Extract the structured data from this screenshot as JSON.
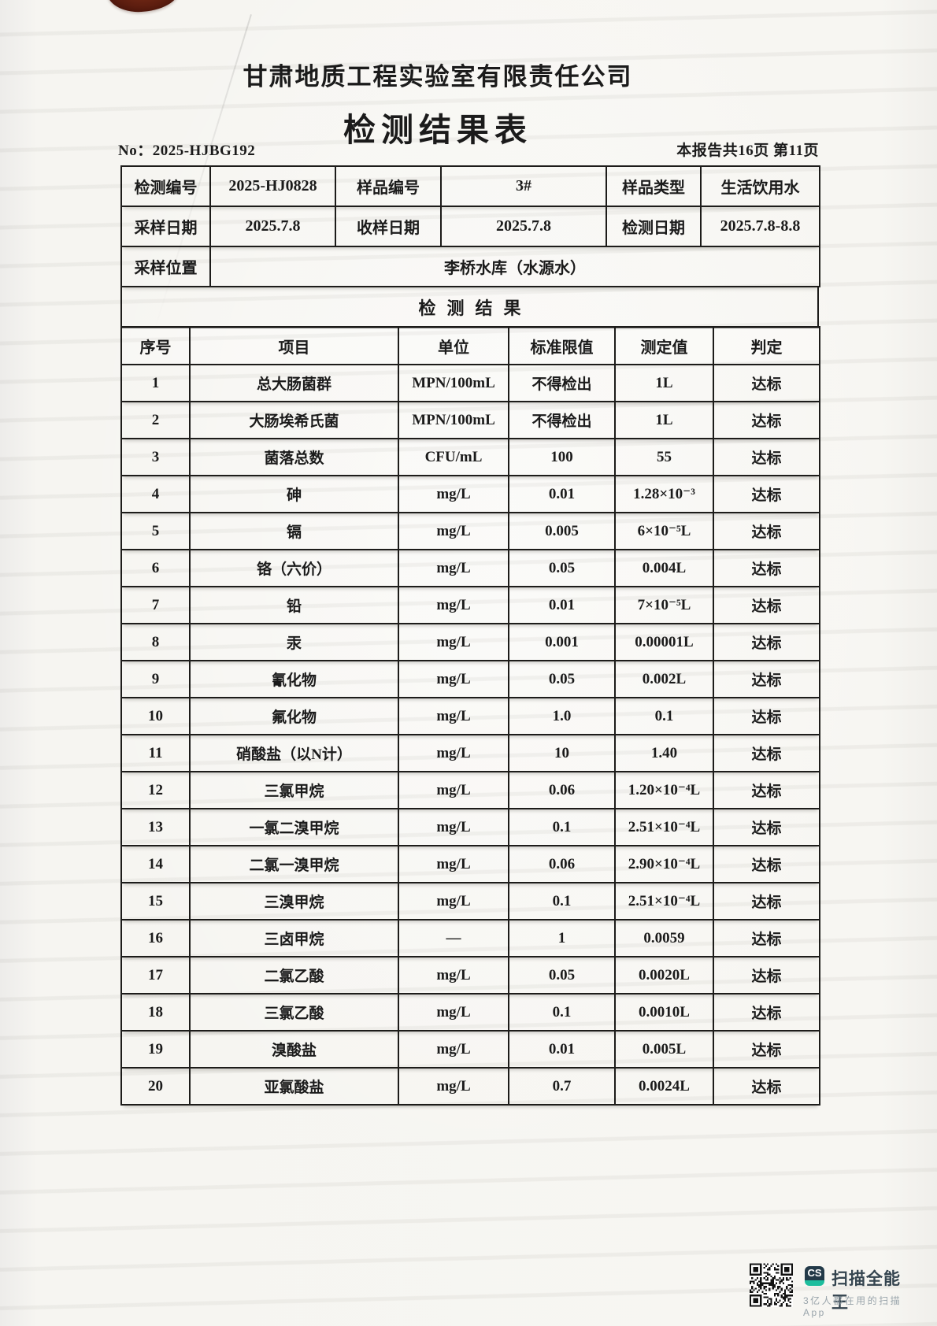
{
  "header": {
    "company": "甘肃地质工程实验室有限责任公司",
    "title": "检测结果表",
    "report_no": "No：2025-HJBG192",
    "page_info": "本报告共16页 第11页"
  },
  "sample_info": {
    "test_no_label": "检测编号",
    "test_no": "2025-HJ0828",
    "sample_no_label": "样品编号",
    "sample_no": "3#",
    "sample_type_label": "样品类型",
    "sample_type": "生活饮用水",
    "sampling_date_label": "采样日期",
    "sampling_date": "2025.7.8",
    "receive_date_label": "收样日期",
    "receive_date": "2025.7.8",
    "test_date_label": "检测日期",
    "test_date": "2025.7.8-8.8",
    "location_label": "采样位置",
    "location": "李桥水库（水源水）"
  },
  "results": {
    "section_title": "检测结果",
    "columns": [
      "序号",
      "项目",
      "单位",
      "标准限值",
      "测定值",
      "判定"
    ],
    "rows": [
      [
        "1",
        "总大肠菌群",
        "MPN/100mL",
        "不得检出",
        "1L",
        "达标"
      ],
      [
        "2",
        "大肠埃希氏菌",
        "MPN/100mL",
        "不得检出",
        "1L",
        "达标"
      ],
      [
        "3",
        "菌落总数",
        "CFU/mL",
        "100",
        "55",
        "达标"
      ],
      [
        "4",
        "砷",
        "mg/L",
        "0.01",
        "1.28×10⁻³",
        "达标"
      ],
      [
        "5",
        "镉",
        "mg/L",
        "0.005",
        "6×10⁻⁵L",
        "达标"
      ],
      [
        "6",
        "铬（六价）",
        "mg/L",
        "0.05",
        "0.004L",
        "达标"
      ],
      [
        "7",
        "铅",
        "mg/L",
        "0.01",
        "7×10⁻⁵L",
        "达标"
      ],
      [
        "8",
        "汞",
        "mg/L",
        "0.001",
        "0.00001L",
        "达标"
      ],
      [
        "9",
        "氰化物",
        "mg/L",
        "0.05",
        "0.002L",
        "达标"
      ],
      [
        "10",
        "氟化物",
        "mg/L",
        "1.0",
        "0.1",
        "达标"
      ],
      [
        "11",
        "硝酸盐（以N计）",
        "mg/L",
        "10",
        "1.40",
        "达标"
      ],
      [
        "12",
        "三氯甲烷",
        "mg/L",
        "0.06",
        "1.20×10⁻⁴L",
        "达标"
      ],
      [
        "13",
        "一氯二溴甲烷",
        "mg/L",
        "0.1",
        "2.51×10⁻⁴L",
        "达标"
      ],
      [
        "14",
        "二氯一溴甲烷",
        "mg/L",
        "0.06",
        "2.90×10⁻⁴L",
        "达标"
      ],
      [
        "15",
        "三溴甲烷",
        "mg/L",
        "0.1",
        "2.51×10⁻⁴L",
        "达标"
      ],
      [
        "16",
        "三卤甲烷",
        "—",
        "1",
        "0.0059",
        "达标"
      ],
      [
        "17",
        "二氯乙酸",
        "mg/L",
        "0.05",
        "0.0020L",
        "达标"
      ],
      [
        "18",
        "三氯乙酸",
        "mg/L",
        "0.1",
        "0.0010L",
        "达标"
      ],
      [
        "19",
        "溴酸盐",
        "mg/L",
        "0.01",
        "0.005L",
        "达标"
      ],
      [
        "20",
        "亚氯酸盐",
        "mg/L",
        "0.7",
        "0.0024L",
        "达标"
      ]
    ]
  },
  "footer": {
    "app_badge": "CS",
    "app_name": "扫描全能王",
    "app_tagline": "3亿人都在用的扫描App",
    "brand_navy": "#233a49",
    "brand_teal": "#1dbd9d"
  }
}
